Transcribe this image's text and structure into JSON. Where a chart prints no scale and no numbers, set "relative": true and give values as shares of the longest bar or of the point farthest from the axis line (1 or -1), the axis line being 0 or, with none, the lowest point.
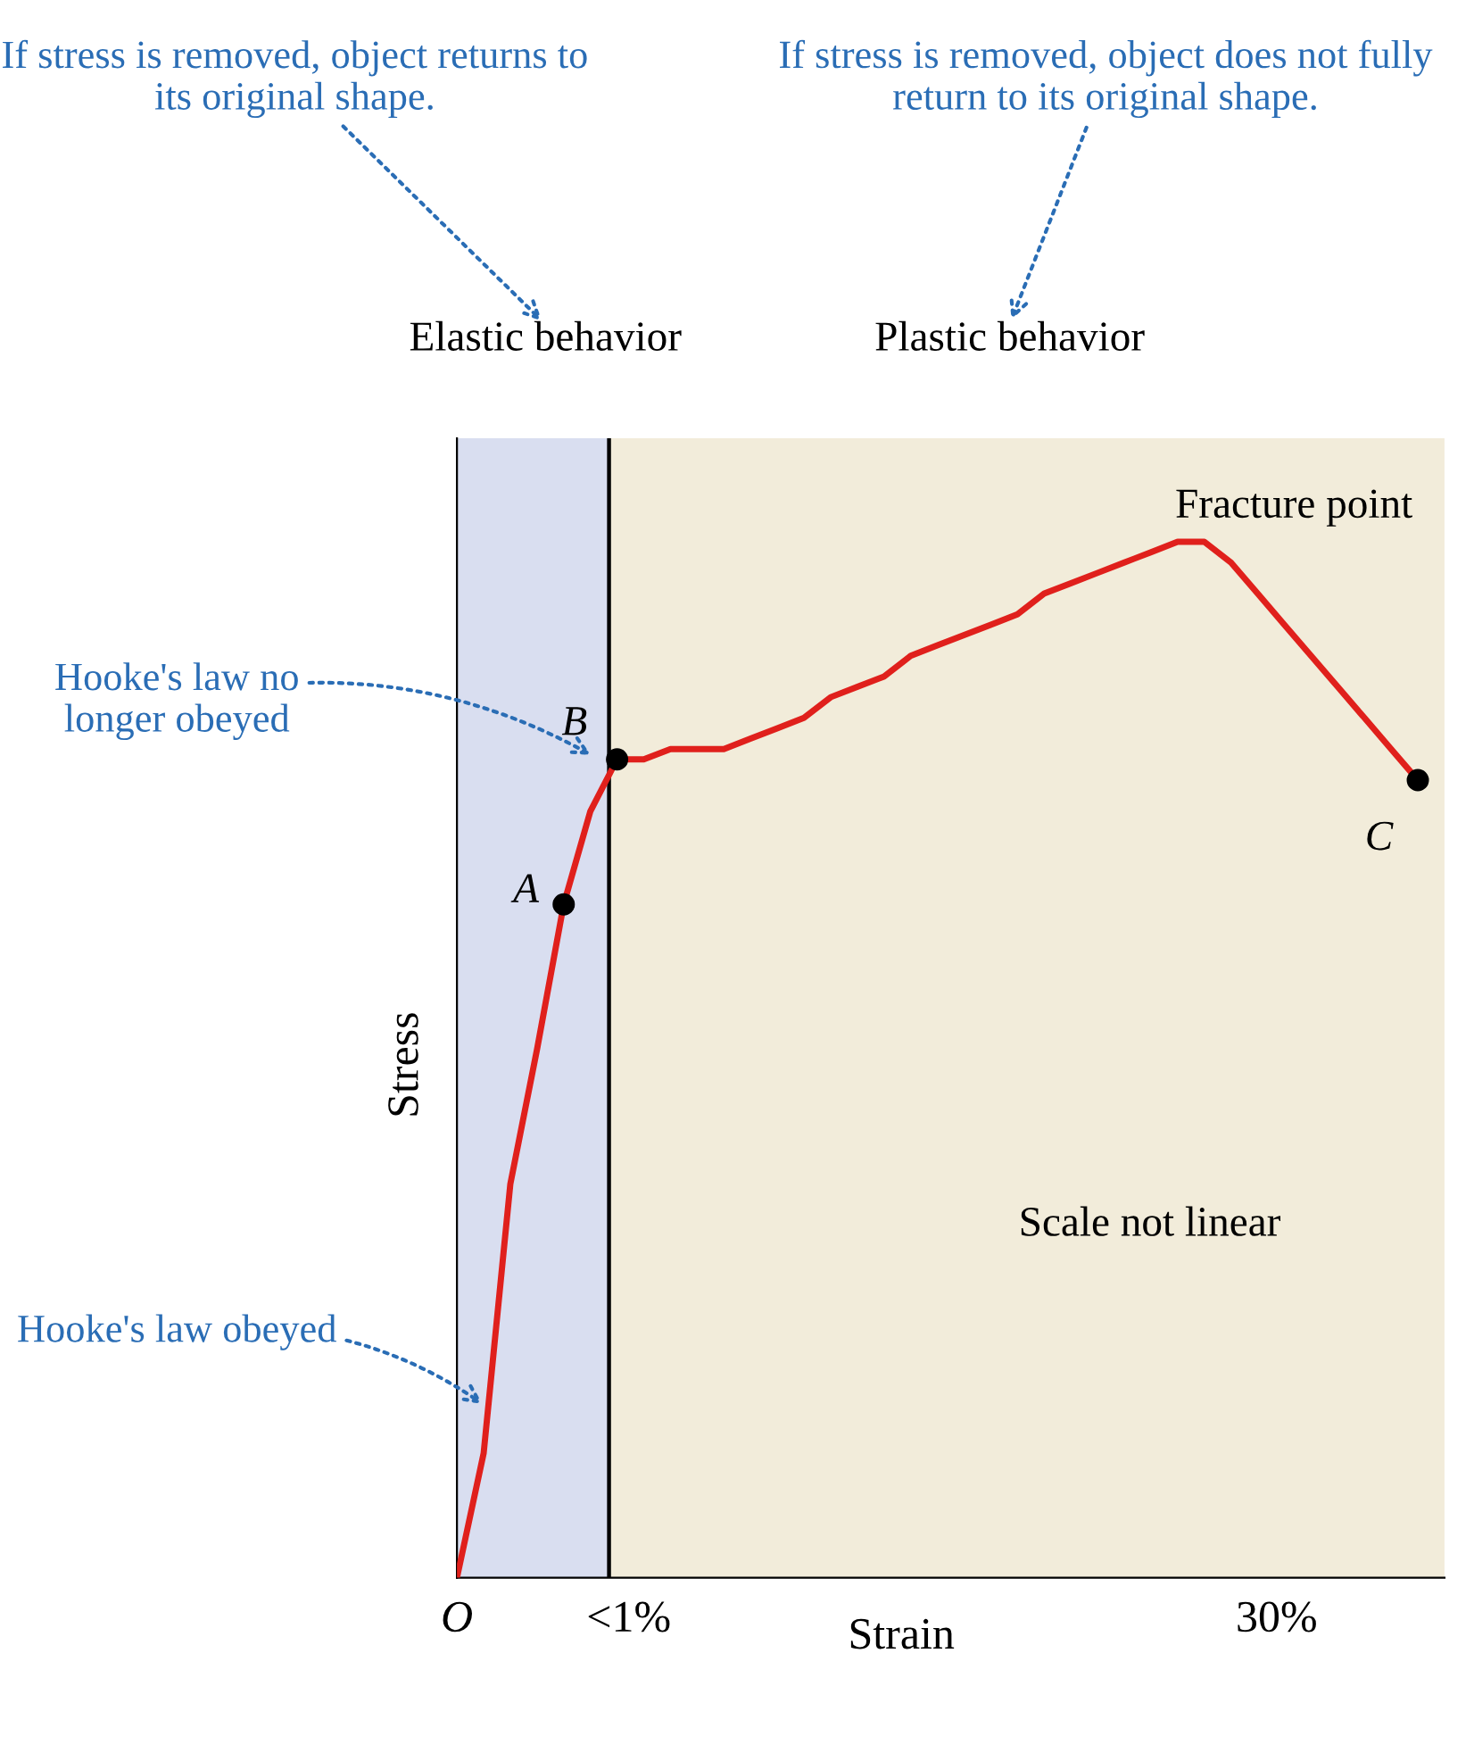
{
  "chart_data": {
    "type": "line",
    "relative": true,
    "xlabel": "Strain",
    "ylabel": "Stress",
    "categories": [
      null,
      null,
      null,
      null,
      null,
      null,
      null,
      null,
      null,
      null,
      null,
      null,
      null,
      null,
      null,
      null,
      null,
      null,
      null,
      null,
      null,
      null,
      null,
      null,
      null,
      null,
      null,
      null,
      null,
      null,
      null,
      null,
      null,
      null,
      null,
      null,
      null
    ],
    "grid": false,
    "series": [
      {
        "color": "#e0201c",
        "line_style": "solid",
        "marker": "none",
        "values": [
          0,
          0.12,
          0.38,
          0.51,
          0.65,
          0.74,
          0.79,
          0.79,
          0.8,
          0.8,
          0.8,
          0.81,
          0.82,
          0.83,
          0.85,
          0.86,
          0.87,
          0.89,
          0.9,
          0.91,
          0.92,
          0.93,
          0.95,
          0.96,
          0.97,
          0.98,
          0.99,
          1.0,
          1.0,
          0.98,
          0.95,
          0.92,
          0.89,
          0.86,
          0.83,
          0.8,
          0.77
        ]
      }
    ],
    "annotations": [
      "If stress is removed, object returns to its original shape.",
      "If stress is removed, object does not fully return to its original shape.",
      "Elastic behavior",
      "Plastic behavior",
      "Scale not linear",
      "Hooke's law no longer obeyed",
      "Hooke's law obeyed",
      "A",
      "B",
      "C",
      "Fracture point",
      "O",
      "<1%",
      "30%"
    ]
  }
}
